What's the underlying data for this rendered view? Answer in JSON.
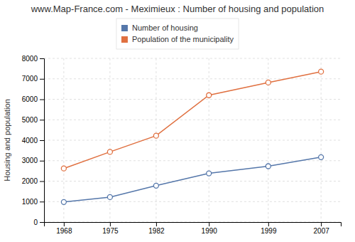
{
  "chart_data": {
    "type": "line",
    "title": "www.Map-France.com - Meximieux : Number of housing and population",
    "y_label": "Housing and population",
    "x": [
      1968,
      1975,
      1982,
      1990,
      1999,
      2007
    ],
    "series": [
      {
        "name": "Number of housing",
        "color": "#5577aa",
        "marker": "circle",
        "values": [
          980,
          1220,
          1780,
          2380,
          2730,
          3170
        ]
      },
      {
        "name": "Population of the municipality",
        "color": "#e07040",
        "marker": "circle",
        "values": [
          2620,
          3430,
          4220,
          6200,
          6820,
          7350
        ]
      }
    ],
    "xlim": [
      1965,
      2010
    ],
    "xticks": [
      1968,
      1975,
      1982,
      1990,
      1999,
      2007
    ],
    "ylim": [
      0,
      8000
    ],
    "yticks": [
      0,
      1000,
      2000,
      3000,
      4000,
      5000,
      6000,
      7000,
      8000
    ],
    "grid": true,
    "legend": "top"
  }
}
